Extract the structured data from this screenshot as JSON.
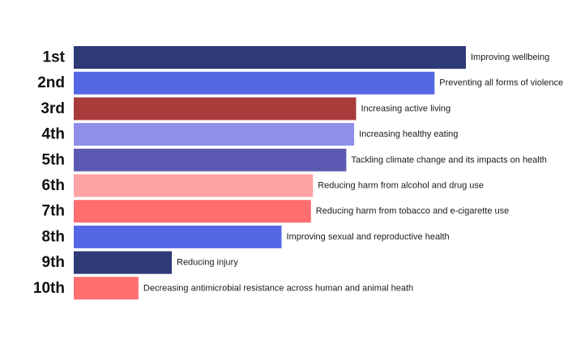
{
  "chart_data": {
    "type": "bar",
    "orientation": "horizontal",
    "title": "",
    "xlabel": "",
    "ylabel": "",
    "grid": false,
    "legend": "none",
    "xlim": [
      0,
      100
    ],
    "categories": [
      "1st",
      "2nd",
      "3rd",
      "4th",
      "5th",
      "6th",
      "7th",
      "8th",
      "9th",
      "10th"
    ],
    "labels": [
      "Improving wellbeing",
      "Preventing all forms of violence",
      "Increasing active living",
      "Increasing healthy eating",
      "Tackling climate change and its impacts on health",
      "Reducing harm from alcohol and drug use",
      "Reducing harm from tobacco and e-cigarette use",
      "Improving sexual and reproductive health",
      "Reducing injury",
      "Decreasing antimicrobial resistance across human and animal heath"
    ],
    "values": [
      100,
      92,
      72,
      71.5,
      69.5,
      61,
      60.5,
      53,
      25,
      16.5
    ],
    "colors": [
      "#2e3a78",
      "#5468e6",
      "#a93b3a",
      "#8f8fe9",
      "#5b59b1",
      "#ffa2a6",
      "#ff6f70",
      "#5468e6",
      "#2e3a78",
      "#ff6f70"
    ]
  }
}
